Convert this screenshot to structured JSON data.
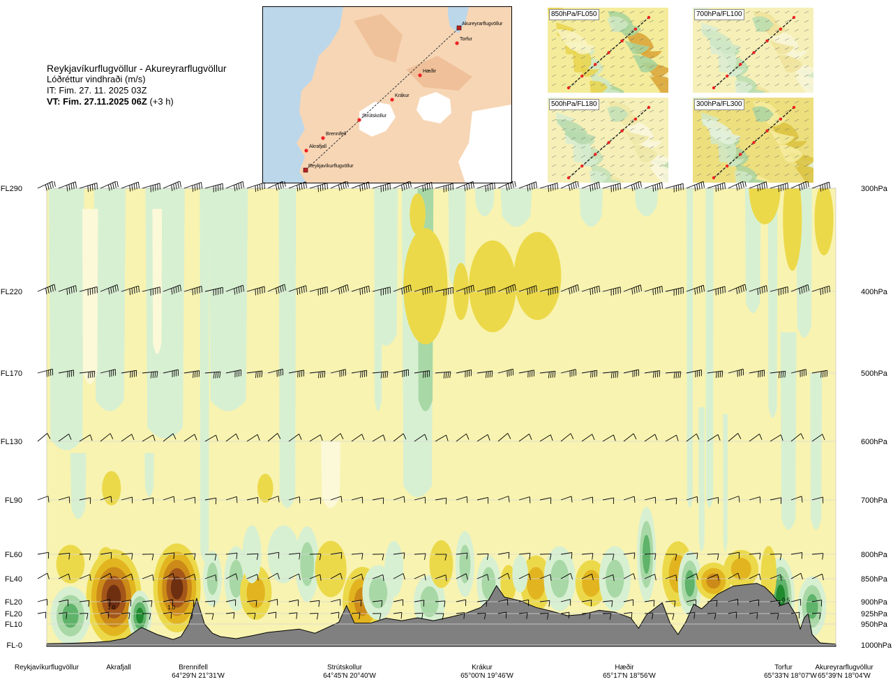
{
  "header": {
    "route": "Reykjavíkurflugvöllur - Akureyrarflugvöllur",
    "quantity": "Lóðréttur vindhraði (m/s)",
    "issue_time": "IT: Fim. 27. 11. 2025 03Z",
    "valid_time": "VT: Fim. 27.11.2025 06Z",
    "valid_offset": "(+3 h)"
  },
  "map": {
    "towns": [
      {
        "name": "Akureyrarflugvöllur",
        "type": "airport"
      },
      {
        "name": "Torfur",
        "type": "waypoint"
      },
      {
        "name": "Hæðir",
        "type": "waypoint"
      },
      {
        "name": "Krákur",
        "type": "waypoint"
      },
      {
        "name": "Strútskollur",
        "type": "waypoint"
      },
      {
        "name": "Brennifell",
        "type": "waypoint"
      },
      {
        "name": "Akrafjall",
        "type": "waypoint"
      },
      {
        "name": "Reykjavíkurflugvöllur",
        "type": "airport"
      }
    ]
  },
  "level_panels": [
    {
      "label": "850hPa/FL050"
    },
    {
      "label": "700hPa/FL100"
    },
    {
      "label": "500hPa/FL180"
    },
    {
      "label": "300hPa/FL300"
    }
  ],
  "colors": {
    "strong_down": "#d8f0d2",
    "mid_down": "#a8d8a6",
    "deep_down": "#5fb36a",
    "darkest_down": "#1f8a2e",
    "neutral": "#f8f3b0",
    "neutral_light": "#fcf9d8",
    "light_up": "#ecd94a",
    "mid_up": "#e2b520",
    "strong_up": "#cc8a18",
    "deep_up": "#a4561a",
    "darkest_up": "#6e2e10",
    "terrain": "#808080",
    "grid": "#d8d8d8"
  },
  "chart_data": {
    "type": "heatmap",
    "title": "Lóðréttur vindhraði (m/s)",
    "flight_levels": [
      {
        "label": "FL290",
        "hpa": "300hPa",
        "p": 300
      },
      {
        "label": "FL220",
        "hpa": "400hPa",
        "p": 400
      },
      {
        "label": "FL170",
        "hpa": "500hPa",
        "p": 500
      },
      {
        "label": "FL130",
        "hpa": "600hPa",
        "p": 600
      },
      {
        "label": "FL90",
        "hpa": "700hPa",
        "p": 700
      },
      {
        "label": "FL60",
        "hpa": "800hPa",
        "p": 800
      },
      {
        "label": "FL40",
        "hpa": "850hPa",
        "p": 850
      },
      {
        "label": "FL20",
        "hpa": "900hPa",
        "p": 900
      },
      {
        "label": "FL20",
        "hpa": "925hPa",
        "p": 925
      },
      {
        "label": "FL10",
        "hpa": "950hPa",
        "p": 950
      },
      {
        "label": "FL-0",
        "hpa": "1000hPa",
        "p": 1000
      }
    ],
    "route_points": [
      {
        "name": "Reykjavíkurflugvöllur",
        "coords": "",
        "dist": 0
      },
      {
        "name": "Akrafjall",
        "coords": "",
        "dist": 0.077
      },
      {
        "name": "Brennifell",
        "coords": "64°29'N 21°31'W",
        "dist": 0.186
      },
      {
        "name": "Strútskollur",
        "coords": "64°45'N 20°40'W",
        "dist": 0.379
      },
      {
        "name": "Krákur",
        "coords": "65°00'N 19°46'W",
        "dist": 0.555
      },
      {
        "name": "Hæðir",
        "coords": "65°17'N 18°56'W",
        "dist": 0.737
      },
      {
        "name": "Torfur",
        "coords": "65°33'N 18°07'W",
        "dist": 0.933
      },
      {
        "name": "Akureyrarflugvöllur",
        "coords": "65°39'N 18°04'W",
        "dist": 1.0
      }
    ],
    "contour_labels": [
      {
        "text": "1.0",
        "dist": 0.082,
        "p": 912
      },
      {
        "text": "1.0",
        "dist": 0.158,
        "p": 912
      },
      {
        "text": "0.5",
        "dist": 0.937,
        "p": 896
      }
    ],
    "terrain_top_p": [
      [
        0,
        997
      ],
      [
        0.03,
        996
      ],
      [
        0.06,
        994
      ],
      [
        0.08,
        991
      ],
      [
        0.1,
        984
      ],
      [
        0.12,
        958
      ],
      [
        0.14,
        975
      ],
      [
        0.16,
        987
      ],
      [
        0.17,
        980
      ],
      [
        0.18,
        950
      ],
      [
        0.185,
        918
      ],
      [
        0.19,
        893
      ],
      [
        0.2,
        950
      ],
      [
        0.21,
        972
      ],
      [
        0.22,
        980
      ],
      [
        0.24,
        985
      ],
      [
        0.26,
        978
      ],
      [
        0.28,
        970
      ],
      [
        0.3,
        966
      ],
      [
        0.32,
        962
      ],
      [
        0.34,
        972
      ],
      [
        0.37,
        946
      ],
      [
        0.38,
        908
      ],
      [
        0.39,
        948
      ],
      [
        0.41,
        948
      ],
      [
        0.43,
        936
      ],
      [
        0.45,
        942
      ],
      [
        0.47,
        935
      ],
      [
        0.49,
        942
      ],
      [
        0.51,
        934
      ],
      [
        0.53,
        925
      ],
      [
        0.55,
        912
      ],
      [
        0.56,
        896
      ],
      [
        0.57,
        865
      ],
      [
        0.58,
        890
      ],
      [
        0.6,
        898
      ],
      [
        0.62,
        912
      ],
      [
        0.64,
        920
      ],
      [
        0.66,
        930
      ],
      [
        0.68,
        927
      ],
      [
        0.7,
        918
      ],
      [
        0.72,
        922
      ],
      [
        0.74,
        935
      ],
      [
        0.75,
        960
      ],
      [
        0.76,
        928
      ],
      [
        0.78,
        902
      ],
      [
        0.79,
        948
      ],
      [
        0.8,
        975
      ],
      [
        0.81,
        945
      ],
      [
        0.82,
        905
      ],
      [
        0.83,
        915
      ],
      [
        0.85,
        884
      ],
      [
        0.87,
        866
      ],
      [
        0.89,
        862
      ],
      [
        0.9,
        860
      ],
      [
        0.91,
        868
      ],
      [
        0.92,
        885
      ],
      [
        0.93,
        908
      ],
      [
        0.94,
        902
      ],
      [
        0.95,
        930
      ],
      [
        0.955,
        962
      ],
      [
        0.96,
        935
      ],
      [
        0.965,
        925
      ],
      [
        0.97,
        975
      ],
      [
        0.98,
        995
      ],
      [
        1.0,
        998
      ]
    ]
  }
}
